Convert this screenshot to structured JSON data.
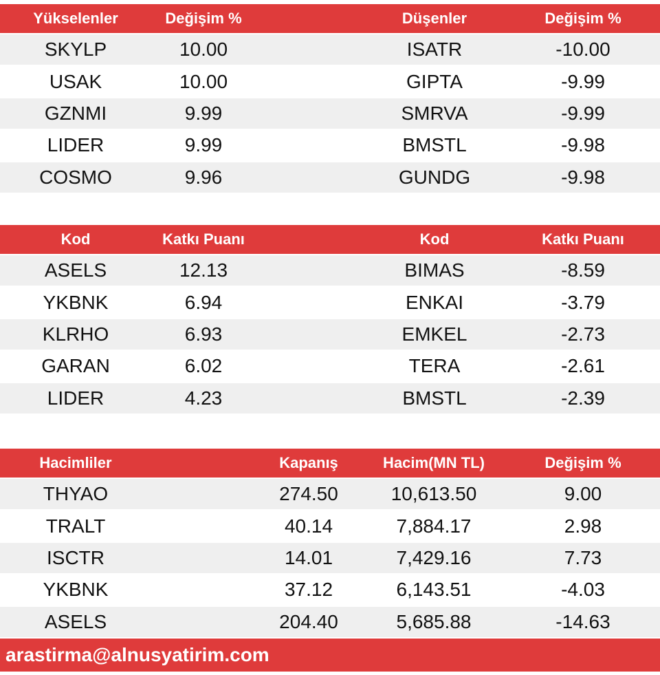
{
  "tables": [
    {
      "header": [
        "Yükselenler",
        "Değişim %",
        "Düşenler",
        "Değişim %"
      ],
      "rows": [
        [
          "SKYLP",
          "10.00",
          "ISATR",
          "-10.00"
        ],
        [
          "USAK",
          "10.00",
          "GIPTA",
          "-9.99"
        ],
        [
          "GZNMI",
          "9.99",
          "SMRVA",
          "-9.99"
        ],
        [
          "LIDER",
          "9.99",
          "BMSTL",
          "-9.98"
        ],
        [
          "COSMO",
          "9.96",
          "GUNDG",
          "-9.98"
        ]
      ]
    },
    {
      "header": [
        "Kod",
        "Katkı Puanı",
        "Kod",
        "Katkı Puanı"
      ],
      "rows": [
        [
          "ASELS",
          "12.13",
          "BIMAS",
          "-8.59"
        ],
        [
          "YKBNK",
          "6.94",
          "ENKAI",
          "-3.79"
        ],
        [
          "KLRHO",
          "6.93",
          "EMKEL",
          "-2.73"
        ],
        [
          "GARAN",
          "6.02",
          "TERA",
          "-2.61"
        ],
        [
          "LIDER",
          "4.23",
          "BMSTL",
          "-2.39"
        ]
      ]
    },
    {
      "header": [
        "Hacimliler",
        "Kapanış",
        "Hacim(MN TL)",
        "Değişim %"
      ],
      "rows": [
        [
          "THYAO",
          "274.50",
          "10,613.50",
          "9.00"
        ],
        [
          "TRALT",
          "40.14",
          "7,884.17",
          "2.98"
        ],
        [
          "ISCTR",
          "14.01",
          "7,429.16",
          "7.73"
        ],
        [
          "YKBNK",
          "37.12",
          "6,143.51",
          "-4.03"
        ],
        [
          "ASELS",
          "204.40",
          "5,685.88",
          "-14.63"
        ]
      ]
    }
  ],
  "footer": {
    "email": "arastirma@alnusyatirim.com"
  }
}
